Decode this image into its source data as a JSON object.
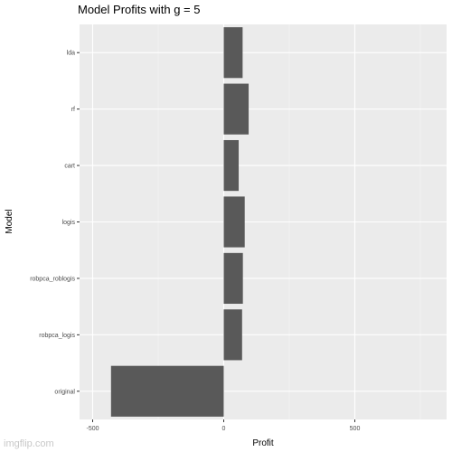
{
  "chart_data": {
    "type": "bar",
    "orientation": "horizontal",
    "title": "Model Profits with g = 5",
    "xlabel": "Profit",
    "ylabel": "Model",
    "categories": [
      "lda",
      "rf",
      "cart",
      "logis",
      "robpca_roblogis",
      "robpca_logis",
      "original"
    ],
    "values": [
      72,
      95,
      57,
      80,
      73,
      70,
      -430
    ],
    "xlim": [
      -550,
      850
    ],
    "xticks": [
      -500,
      0,
      500
    ],
    "xtick_labels": [
      "-500",
      "0",
      "500"
    ],
    "grid": true,
    "legend": "none",
    "bar_color": "#595959",
    "panel_color": "#ebebeb"
  },
  "watermark": "imgflip.com"
}
